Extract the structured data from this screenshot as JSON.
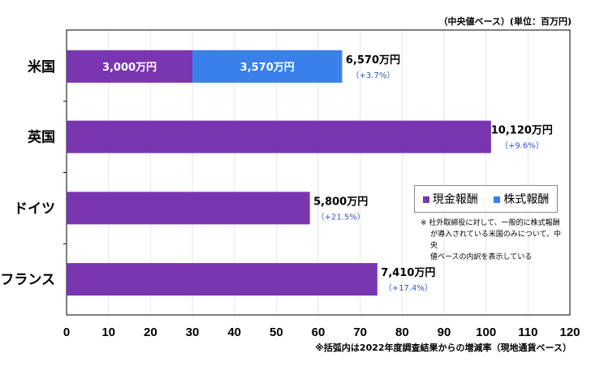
{
  "chart_data": {
    "type": "bar",
    "orientation": "horizontal",
    "stacked": true,
    "categories": [
      "米国",
      "英国",
      "ドイツ",
      "フランス"
    ],
    "series": [
      {
        "name": "現金報酬",
        "color": "#7a35b0",
        "values": [
          30.0,
          101.2,
          58.0,
          74.1
        ]
      },
      {
        "name": "株式報酬",
        "color": "#3a80ea",
        "values": [
          35.7,
          0,
          0,
          0
        ]
      }
    ],
    "segment_labels": [
      [
        "3,000万円",
        "3,570万円"
      ],
      [],
      [],
      []
    ],
    "total_labels": [
      "6,570万円",
      "10,120万円",
      "5,800万円",
      "7,410万円"
    ],
    "change_labels": [
      "（+3.7%）",
      "（+9.6%）",
      "（+21.5%）",
      "（+17.4%）"
    ],
    "xlim": [
      0,
      120
    ],
    "xticks": [
      0,
      10,
      20,
      30,
      40,
      50,
      60,
      70,
      80,
      90,
      100,
      110,
      120
    ],
    "grid": true,
    "legend_position": "right",
    "unit_note": "（中央値ベース）(単位：百万円)",
    "footnote": "※括弧内は2022年度調査結果からの増減率（現地通貨ベース）",
    "note_lines": [
      "※ 社外取締役に対して、一般的に株式報酬",
      "が導入されている米国のみについて、中央",
      "値ベースの内訳を表示している"
    ]
  }
}
